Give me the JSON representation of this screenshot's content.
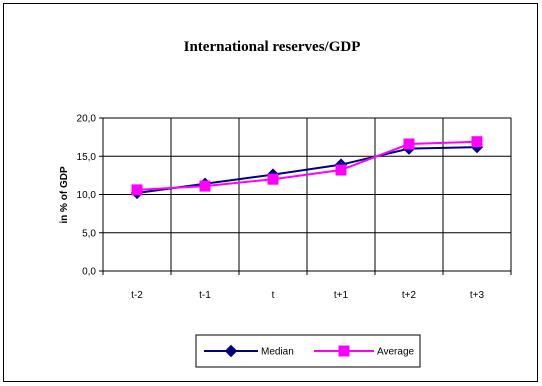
{
  "chart_data": {
    "type": "line",
    "title": "International reserves/GDP",
    "ylabel": "in % of GDP",
    "xlabel": "",
    "categories": [
      "t-2",
      "t-1",
      "t",
      "t+1",
      "t+2",
      "t+3"
    ],
    "ylim": [
      0,
      20
    ],
    "yticks": [
      "0,0",
      "5,0",
      "10,0",
      "15,0",
      "20,0"
    ],
    "grid": true,
    "legend_position": "bottom",
    "series": [
      {
        "name": "Median",
        "color": "#000080",
        "marker": "diamond",
        "values": [
          10.2,
          11.4,
          12.6,
          13.9,
          16.0,
          16.2
        ]
      },
      {
        "name": "Average",
        "color": "#ff00ff",
        "marker": "square",
        "values": [
          10.6,
          11.1,
          12.0,
          13.2,
          16.6,
          16.9
        ]
      }
    ]
  }
}
